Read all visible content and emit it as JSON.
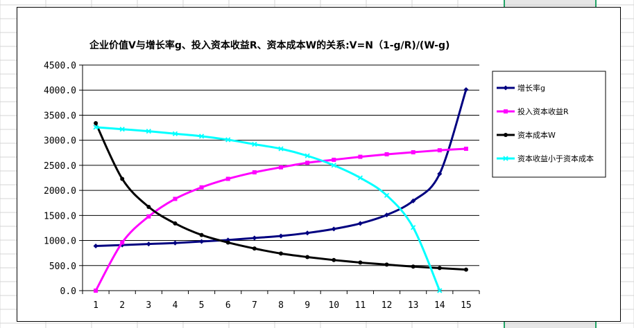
{
  "colors": {
    "sheet_bg": "#ffffff",
    "sheet_grid": "#d4d4d4",
    "selected_col_fill": "#e6e6e6",
    "selected_col_border": "#21a366",
    "plot_bg": "#ffffff",
    "gridline": "#000000"
  },
  "chart_data": {
    "type": "line",
    "title": "企业价值V与增长率g、投入资本收益R、资本成本W的关系:V=N（1-g/R)/(W-g)",
    "xlabel": "",
    "ylabel": "",
    "x": [
      1,
      2,
      3,
      4,
      5,
      6,
      7,
      8,
      9,
      10,
      11,
      12,
      13,
      14,
      15
    ],
    "ylim": [
      0,
      4500
    ],
    "yticks": [
      "0.0",
      "500.0",
      "1000.0",
      "1500.0",
      "2000.0",
      "2500.0",
      "3000.0",
      "3500.0",
      "4000.0",
      "4500.0"
    ],
    "grid": "horizontal",
    "legend_position": "right",
    "series": [
      {
        "name": "增长率g",
        "color": "#000080",
        "marker": "diamond",
        "values": [
          890,
          910,
          930,
          950,
          980,
          1010,
          1050,
          1090,
          1150,
          1230,
          1340,
          1510,
          1790,
          2330,
          4010
        ]
      },
      {
        "name": "投入资本收益R",
        "color": "#ff00ff",
        "marker": "square",
        "values": [
          0,
          960,
          1480,
          1830,
          2060,
          2230,
          2360,
          2460,
          2550,
          2610,
          2670,
          2720,
          2760,
          2800,
          2830
        ]
      },
      {
        "name": "资本成本W",
        "color": "#000000",
        "marker": "circle",
        "values": [
          3340,
          2230,
          1670,
          1340,
          1110,
          960,
          840,
          740,
          670,
          610,
          560,
          520,
          480,
          450,
          420
        ]
      },
      {
        "name": "资本收益小于资本成本",
        "color": "#00ffff",
        "marker": "x",
        "values": [
          3260,
          3220,
          3180,
          3130,
          3080,
          3010,
          2920,
          2830,
          2690,
          2500,
          2250,
          1900,
          1260,
          0,
          null
        ]
      }
    ]
  }
}
